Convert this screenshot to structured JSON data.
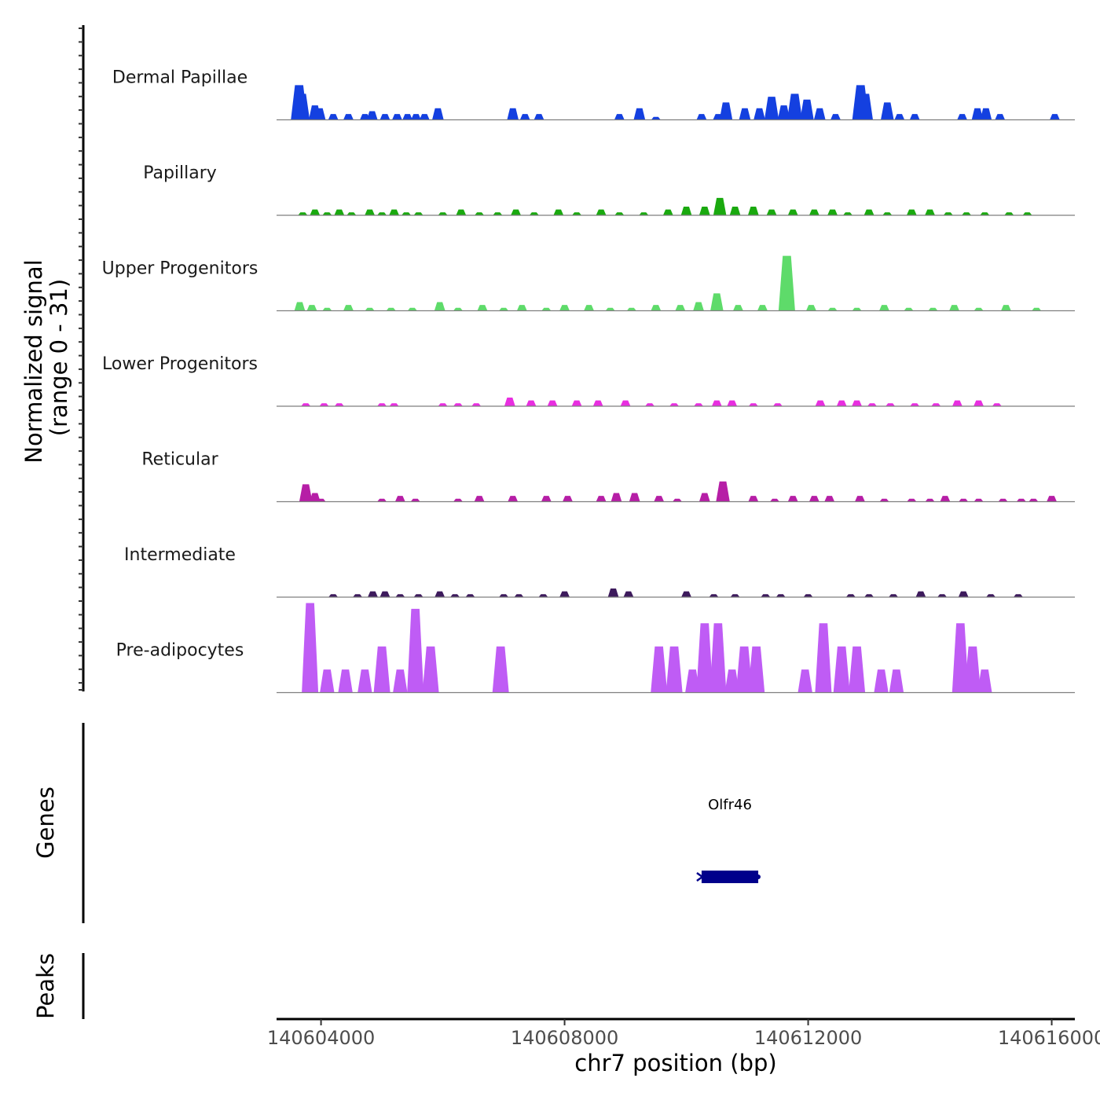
{
  "chart_data": {
    "type": "area",
    "title": "",
    "ylabel": "Normalized signal",
    "ylabel_range": "(range 0 - 31)",
    "ylim": [
      0,
      31
    ],
    "xlabel": "chr7 position (bp)",
    "xlim": [
      140603270,
      140616380
    ],
    "x_ticks": [
      140604000,
      140608000,
      140612000,
      140616000
    ],
    "x_tick_labels": [
      "140604000",
      "140608000",
      "140612000",
      "140616000"
    ],
    "tracks": [
      {
        "name": "Dermal Papillae",
        "color": "#1440e0",
        "peaks": [
          [
            140603640,
            12
          ],
          [
            140603690,
            9
          ],
          [
            140603900,
            5
          ],
          [
            140603980,
            4
          ],
          [
            140604200,
            2
          ],
          [
            140604450,
            2
          ],
          [
            140604720,
            2
          ],
          [
            140604840,
            3
          ],
          [
            140605050,
            2
          ],
          [
            140605250,
            2
          ],
          [
            140605420,
            2
          ],
          [
            140605560,
            2
          ],
          [
            140605700,
            2
          ],
          [
            140605920,
            4
          ],
          [
            140607150,
            4
          ],
          [
            140607350,
            2
          ],
          [
            140607580,
            2
          ],
          [
            140608900,
            2
          ],
          [
            140609230,
            4
          ],
          [
            140609500,
            1
          ],
          [
            140610250,
            2
          ],
          [
            140610520,
            2
          ],
          [
            140610650,
            6
          ],
          [
            140610960,
            4
          ],
          [
            140611200,
            4
          ],
          [
            140611400,
            8
          ],
          [
            140611600,
            5
          ],
          [
            140611780,
            9
          ],
          [
            140611980,
            7
          ],
          [
            140612190,
            4
          ],
          [
            140612450,
            2
          ],
          [
            140612860,
            12
          ],
          [
            140612940,
            9
          ],
          [
            140613300,
            6
          ],
          [
            140613500,
            2
          ],
          [
            140613750,
            2
          ],
          [
            140614530,
            2
          ],
          [
            140614780,
            4
          ],
          [
            140614920,
            4
          ],
          [
            140615150,
            2
          ],
          [
            140616050,
            2
          ]
        ]
      },
      {
        "name": "Papillary",
        "color": "#1aa90f",
        "peaks": [
          [
            140603700,
            1
          ],
          [
            140603900,
            2
          ],
          [
            140604100,
            1
          ],
          [
            140604300,
            2
          ],
          [
            140604500,
            1
          ],
          [
            140604800,
            2
          ],
          [
            140605000,
            1
          ],
          [
            140605200,
            2
          ],
          [
            140605400,
            1
          ],
          [
            140605600,
            1
          ],
          [
            140606000,
            1
          ],
          [
            140606300,
            2
          ],
          [
            140606600,
            1
          ],
          [
            140606900,
            1
          ],
          [
            140607200,
            2
          ],
          [
            140607500,
            1
          ],
          [
            140607900,
            2
          ],
          [
            140608200,
            1
          ],
          [
            140608600,
            2
          ],
          [
            140608900,
            1
          ],
          [
            140609300,
            1
          ],
          [
            140609700,
            2
          ],
          [
            140610000,
            3
          ],
          [
            140610300,
            3
          ],
          [
            140610550,
            6
          ],
          [
            140610800,
            3
          ],
          [
            140611100,
            3
          ],
          [
            140611400,
            2
          ],
          [
            140611750,
            2
          ],
          [
            140612100,
            2
          ],
          [
            140612400,
            2
          ],
          [
            140612650,
            1
          ],
          [
            140613000,
            2
          ],
          [
            140613300,
            1
          ],
          [
            140613700,
            2
          ],
          [
            140614000,
            2
          ],
          [
            140614300,
            1
          ],
          [
            140614600,
            1
          ],
          [
            140614900,
            1
          ],
          [
            140615300,
            1
          ],
          [
            140615600,
            1
          ]
        ]
      },
      {
        "name": "Upper Progenitors",
        "color": "#5edb6a",
        "peaks": [
          [
            140603650,
            3
          ],
          [
            140603850,
            2
          ],
          [
            140604100,
            1
          ],
          [
            140604450,
            2
          ],
          [
            140604800,
            1
          ],
          [
            140605150,
            1
          ],
          [
            140605500,
            1
          ],
          [
            140605950,
            3
          ],
          [
            140606250,
            1
          ],
          [
            140606650,
            2
          ],
          [
            140607000,
            1
          ],
          [
            140607300,
            2
          ],
          [
            140607700,
            1
          ],
          [
            140608000,
            2
          ],
          [
            140608400,
            2
          ],
          [
            140608750,
            1
          ],
          [
            140609100,
            1
          ],
          [
            140609500,
            2
          ],
          [
            140609900,
            2
          ],
          [
            140610200,
            3
          ],
          [
            140610500,
            6
          ],
          [
            140610850,
            2
          ],
          [
            140611250,
            2
          ],
          [
            140611650,
            19
          ],
          [
            140612050,
            2
          ],
          [
            140612400,
            1
          ],
          [
            140612800,
            1
          ],
          [
            140613250,
            2
          ],
          [
            140613650,
            1
          ],
          [
            140614050,
            1
          ],
          [
            140614400,
            2
          ],
          [
            140614800,
            1
          ],
          [
            140615250,
            2
          ],
          [
            140615750,
            1
          ]
        ]
      },
      {
        "name": "Lower Progenitors",
        "color": "#e82ee0",
        "peaks": [
          [
            140603750,
            1
          ],
          [
            140604050,
            1
          ],
          [
            140604300,
            1
          ],
          [
            140605000,
            1
          ],
          [
            140605200,
            1
          ],
          [
            140606000,
            1
          ],
          [
            140606250,
            1
          ],
          [
            140606550,
            1
          ],
          [
            140607100,
            3
          ],
          [
            140607450,
            2
          ],
          [
            140607800,
            2
          ],
          [
            140608200,
            2
          ],
          [
            140608550,
            2
          ],
          [
            140609000,
            2
          ],
          [
            140609400,
            1
          ],
          [
            140609800,
            1
          ],
          [
            140610200,
            1
          ],
          [
            140610500,
            2
          ],
          [
            140610750,
            2
          ],
          [
            140611100,
            1
          ],
          [
            140611500,
            1
          ],
          [
            140612200,
            2
          ],
          [
            140612550,
            2
          ],
          [
            140612800,
            2
          ],
          [
            140613050,
            1
          ],
          [
            140613350,
            1
          ],
          [
            140613750,
            1
          ],
          [
            140614100,
            1
          ],
          [
            140614450,
            2
          ],
          [
            140614800,
            2
          ],
          [
            140615100,
            1
          ]
        ]
      },
      {
        "name": "Reticular",
        "color": "#b61ea6",
        "peaks": [
          [
            140603750,
            6
          ],
          [
            140603900,
            3
          ],
          [
            140604000,
            1
          ],
          [
            140605000,
            1
          ],
          [
            140605300,
            2
          ],
          [
            140605550,
            1
          ],
          [
            140606250,
            1
          ],
          [
            140606600,
            2
          ],
          [
            140607150,
            2
          ],
          [
            140607700,
            2
          ],
          [
            140608050,
            2
          ],
          [
            140608600,
            2
          ],
          [
            140608850,
            3
          ],
          [
            140609150,
            3
          ],
          [
            140609550,
            2
          ],
          [
            140609850,
            1
          ],
          [
            140610300,
            3
          ],
          [
            140610600,
            7
          ],
          [
            140611100,
            2
          ],
          [
            140611450,
            1
          ],
          [
            140611750,
            2
          ],
          [
            140612100,
            2
          ],
          [
            140612350,
            2
          ],
          [
            140612850,
            2
          ],
          [
            140613250,
            1
          ],
          [
            140613700,
            1
          ],
          [
            140614000,
            1
          ],
          [
            140614250,
            2
          ],
          [
            140614550,
            1
          ],
          [
            140614800,
            1
          ],
          [
            140615200,
            1
          ],
          [
            140615500,
            1
          ],
          [
            140615700,
            1
          ],
          [
            140616000,
            2
          ]
        ]
      },
      {
        "name": "Intermediate",
        "color": "#3d1a5c",
        "peaks": [
          [
            140604200,
            1
          ],
          [
            140604600,
            1
          ],
          [
            140604850,
            2
          ],
          [
            140605050,
            2
          ],
          [
            140605300,
            1
          ],
          [
            140605600,
            1
          ],
          [
            140605950,
            2
          ],
          [
            140606200,
            1
          ],
          [
            140606450,
            1
          ],
          [
            140607000,
            1
          ],
          [
            140607250,
            1
          ],
          [
            140607650,
            1
          ],
          [
            140608000,
            2
          ],
          [
            140608800,
            3
          ],
          [
            140609050,
            2
          ],
          [
            140610000,
            2
          ],
          [
            140610450,
            1
          ],
          [
            140610800,
            1
          ],
          [
            140611300,
            1
          ],
          [
            140611550,
            1
          ],
          [
            140612000,
            1
          ],
          [
            140612700,
            1
          ],
          [
            140613000,
            1
          ],
          [
            140613400,
            1
          ],
          [
            140613850,
            2
          ],
          [
            140614200,
            1
          ],
          [
            140614550,
            2
          ],
          [
            140615000,
            1
          ],
          [
            140615450,
            1
          ]
        ]
      },
      {
        "name": "Pre-adipocytes",
        "color": "#bf5cf5",
        "peaks": [
          [
            140603820,
            31
          ],
          [
            140604100,
            8
          ],
          [
            140604400,
            8
          ],
          [
            140604720,
            8
          ],
          [
            140605000,
            16
          ],
          [
            140605300,
            8
          ],
          [
            140605550,
            29
          ],
          [
            140605800,
            16
          ],
          [
            140606950,
            16
          ],
          [
            140609550,
            16
          ],
          [
            140609800,
            16
          ],
          [
            140610100,
            8
          ],
          [
            140610300,
            24
          ],
          [
            140610520,
            24
          ],
          [
            140610750,
            8
          ],
          [
            140610950,
            16
          ],
          [
            140611150,
            16
          ],
          [
            140611950,
            8
          ],
          [
            140612250,
            24
          ],
          [
            140612550,
            16
          ],
          [
            140612800,
            16
          ],
          [
            140613200,
            8
          ],
          [
            140613450,
            8
          ],
          [
            140614500,
            24
          ],
          [
            140614700,
            16
          ],
          [
            140614900,
            8
          ]
        ]
      }
    ],
    "genes_track_label": "Genes",
    "genes": [
      {
        "name": "Olfr46",
        "start": 140610250,
        "end": 140611180,
        "strand": "-",
        "color": "#00008b"
      }
    ],
    "peaks_track_label": "Peaks"
  }
}
